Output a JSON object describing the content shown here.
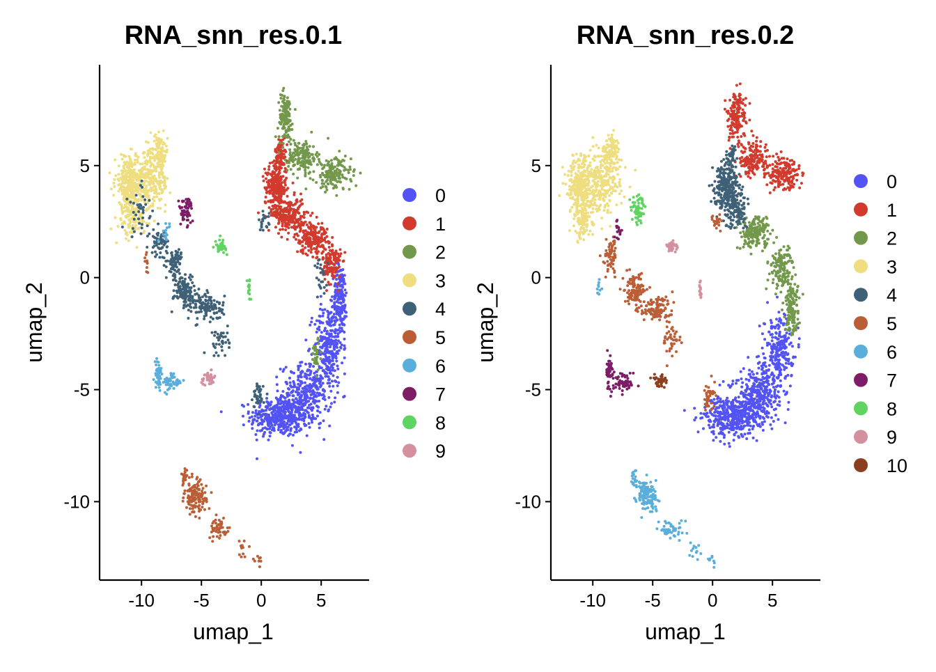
{
  "chart_data": [
    {
      "type": "scatter",
      "title": "RNA_snn_res.0.1",
      "xlabel": "umap_1",
      "ylabel": "umap_2",
      "xlim": [
        -13.5,
        9
      ],
      "ylim": [
        -13.5,
        9.5
      ],
      "xticks": [
        -10,
        -5,
        0,
        5
      ],
      "yticks": [
        5,
        0,
        -5,
        -10
      ],
      "legend_position": "right",
      "clusters": [
        {
          "name": "0",
          "color": "#5353f5",
          "blobs": [
            {
              "x": 1.5,
              "y": -6.2,
              "sx": 1.6,
              "sy": 0.6,
              "n": 420
            },
            {
              "x": 3.8,
              "y": -5.2,
              "sx": 1.4,
              "sy": 0.9,
              "n": 320
            },
            {
              "x": 5.6,
              "y": -3.0,
              "sx": 0.8,
              "sy": 1.2,
              "n": 260
            },
            {
              "x": 6.6,
              "y": -0.9,
              "sx": 0.4,
              "sy": 1.0,
              "n": 170
            }
          ]
        },
        {
          "name": "1",
          "color": "#d13a2d",
          "blobs": [
            {
              "x": 1.2,
              "y": 4.0,
              "sx": 0.6,
              "sy": 0.7,
              "n": 260
            },
            {
              "x": 2.4,
              "y": 2.8,
              "sx": 0.8,
              "sy": 0.5,
              "n": 200
            },
            {
              "x": 4.2,
              "y": 1.8,
              "sx": 0.9,
              "sy": 0.5,
              "n": 200
            },
            {
              "x": 5.9,
              "y": 0.6,
              "sx": 0.5,
              "sy": 0.6,
              "n": 140
            },
            {
              "x": 1.6,
              "y": 5.5,
              "sx": 0.3,
              "sy": 0.5,
              "n": 70
            }
          ]
        },
        {
          "name": "2",
          "color": "#72994b",
          "blobs": [
            {
              "x": 2.0,
              "y": 7.2,
              "sx": 0.4,
              "sy": 0.7,
              "n": 130
            },
            {
              "x": 3.4,
              "y": 5.4,
              "sx": 0.8,
              "sy": 0.5,
              "n": 160
            },
            {
              "x": 6.0,
              "y": 4.6,
              "sx": 1.0,
              "sy": 0.5,
              "n": 170
            },
            {
              "x": 4.6,
              "y": -3.5,
              "sx": 0.3,
              "sy": 0.5,
              "n": 30
            }
          ]
        },
        {
          "name": "3",
          "color": "#eede80",
          "blobs": [
            {
              "x": -11.0,
              "y": 4.2,
              "sx": 0.8,
              "sy": 0.8,
              "n": 280
            },
            {
              "x": -9.2,
              "y": 4.3,
              "sx": 1.0,
              "sy": 0.9,
              "n": 260
            },
            {
              "x": -8.5,
              "y": 5.6,
              "sx": 0.5,
              "sy": 0.5,
              "n": 90
            },
            {
              "x": -10.8,
              "y": 2.6,
              "sx": 0.7,
              "sy": 0.6,
              "n": 110
            }
          ]
        },
        {
          "name": "4",
          "color": "#3f6177",
          "blobs": [
            {
              "x": -8.5,
              "y": 1.6,
              "sx": 0.5,
              "sy": 0.4,
              "n": 60
            },
            {
              "x": -7.2,
              "y": 0.6,
              "sx": 0.4,
              "sy": 0.5,
              "n": 70
            },
            {
              "x": -6.4,
              "y": -0.6,
              "sx": 0.6,
              "sy": 0.5,
              "n": 120
            },
            {
              "x": -4.5,
              "y": -1.3,
              "sx": 0.9,
              "sy": 0.4,
              "n": 120
            },
            {
              "x": -3.4,
              "y": -2.8,
              "sx": 0.5,
              "sy": 0.5,
              "n": 40
            },
            {
              "x": -0.2,
              "y": -5.3,
              "sx": 0.3,
              "sy": 0.4,
              "n": 40
            },
            {
              "x": 0.2,
              "y": 2.5,
              "sx": 0.3,
              "sy": 0.3,
              "n": 20
            },
            {
              "x": 5.0,
              "y": 0.0,
              "sx": 0.4,
              "sy": 0.6,
              "n": 25
            },
            {
              "x": -10.0,
              "y": 3.0,
              "sx": 0.8,
              "sy": 0.8,
              "n": 40
            }
          ]
        },
        {
          "name": "5",
          "color": "#bb5e36",
          "blobs": [
            {
              "x": -5.5,
              "y": -9.8,
              "sx": 0.6,
              "sy": 0.5,
              "n": 130
            },
            {
              "x": -6.5,
              "y": -9.0,
              "sx": 0.2,
              "sy": 0.3,
              "n": 20
            },
            {
              "x": -3.5,
              "y": -11.2,
              "sx": 0.6,
              "sy": 0.3,
              "n": 50
            },
            {
              "x": -1.5,
              "y": -12.1,
              "sx": 0.4,
              "sy": 0.3,
              "n": 12
            },
            {
              "x": -0.2,
              "y": -12.6,
              "sx": 0.2,
              "sy": 0.2,
              "n": 8
            },
            {
              "x": -9.6,
              "y": 0.6,
              "sx": 0.1,
              "sy": 0.4,
              "n": 10
            }
          ]
        },
        {
          "name": "6",
          "color": "#5aaedc",
          "blobs": [
            {
              "x": -8.6,
              "y": -4.3,
              "sx": 0.2,
              "sy": 0.5,
              "n": 50
            },
            {
              "x": -7.4,
              "y": -4.7,
              "sx": 0.5,
              "sy": 0.3,
              "n": 55
            },
            {
              "x": -8.0,
              "y": 2.1,
              "sx": 0.3,
              "sy": 0.3,
              "n": 15
            }
          ]
        },
        {
          "name": "7",
          "color": "#7d1d66",
          "blobs": [
            {
              "x": -6.3,
              "y": 3.0,
              "sx": 0.4,
              "sy": 0.4,
              "n": 60
            }
          ]
        },
        {
          "name": "8",
          "color": "#5fd461",
          "blobs": [
            {
              "x": -3.4,
              "y": 1.4,
              "sx": 0.3,
              "sy": 0.2,
              "n": 40
            },
            {
              "x": -1.0,
              "y": -0.5,
              "sx": 0.1,
              "sy": 0.3,
              "n": 15
            }
          ]
        },
        {
          "name": "9",
          "color": "#d4909e",
          "blobs": [
            {
              "x": -4.4,
              "y": -4.5,
              "sx": 0.4,
              "sy": 0.2,
              "n": 40
            }
          ]
        }
      ]
    },
    {
      "type": "scatter",
      "title": "RNA_snn_res.0.2",
      "xlabel": "umap_1",
      "ylabel": "umap_2",
      "xlim": [
        -13.5,
        9
      ],
      "ylim": [
        -13.5,
        9.5
      ],
      "xticks": [
        -10,
        -5,
        0,
        5
      ],
      "yticks": [
        5,
        0,
        -5,
        -10
      ],
      "legend_position": "right",
      "clusters": [
        {
          "name": "0",
          "color": "#5353f5",
          "blobs": [
            {
              "x": 1.5,
              "y": -6.2,
              "sx": 1.6,
              "sy": 0.6,
              "n": 420
            },
            {
              "x": 3.8,
              "y": -5.2,
              "sx": 1.4,
              "sy": 0.9,
              "n": 320
            },
            {
              "x": 5.6,
              "y": -3.2,
              "sx": 0.8,
              "sy": 1.0,
              "n": 240
            }
          ]
        },
        {
          "name": "1",
          "color": "#d13a2d",
          "blobs": [
            {
              "x": 2.0,
              "y": 7.2,
              "sx": 0.5,
              "sy": 0.8,
              "n": 160
            },
            {
              "x": 3.4,
              "y": 5.3,
              "sx": 0.8,
              "sy": 0.5,
              "n": 160
            },
            {
              "x": 6.0,
              "y": 4.6,
              "sx": 1.0,
              "sy": 0.5,
              "n": 170
            }
          ]
        },
        {
          "name": "2",
          "color": "#72994b",
          "blobs": [
            {
              "x": 3.5,
              "y": 2.0,
              "sx": 0.9,
              "sy": 0.5,
              "n": 180
            },
            {
              "x": 5.8,
              "y": 0.4,
              "sx": 0.6,
              "sy": 0.6,
              "n": 140
            },
            {
              "x": 6.6,
              "y": -1.3,
              "sx": 0.4,
              "sy": 0.8,
              "n": 130
            }
          ]
        },
        {
          "name": "3",
          "color": "#eede80",
          "blobs": [
            {
              "x": -11.0,
              "y": 4.2,
              "sx": 0.8,
              "sy": 0.8,
              "n": 280
            },
            {
              "x": -9.2,
              "y": 4.3,
              "sx": 1.0,
              "sy": 0.9,
              "n": 260
            },
            {
              "x": -8.5,
              "y": 5.6,
              "sx": 0.5,
              "sy": 0.5,
              "n": 90
            },
            {
              "x": -10.8,
              "y": 2.6,
              "sx": 0.7,
              "sy": 0.6,
              "n": 110
            }
          ]
        },
        {
          "name": "4",
          "color": "#3f6177",
          "blobs": [
            {
              "x": 1.2,
              "y": 4.0,
              "sx": 0.7,
              "sy": 0.7,
              "n": 260
            },
            {
              "x": 1.9,
              "y": 3.0,
              "sx": 0.6,
              "sy": 0.5,
              "n": 120
            },
            {
              "x": 1.5,
              "y": 5.3,
              "sx": 0.3,
              "sy": 0.4,
              "n": 40
            }
          ]
        },
        {
          "name": "5",
          "color": "#bb5e36",
          "blobs": [
            {
              "x": -8.5,
              "y": 1.0,
              "sx": 0.4,
              "sy": 0.5,
              "n": 60
            },
            {
              "x": -6.5,
              "y": -0.6,
              "sx": 0.6,
              "sy": 0.5,
              "n": 110
            },
            {
              "x": -4.8,
              "y": -1.4,
              "sx": 0.9,
              "sy": 0.4,
              "n": 110
            },
            {
              "x": -3.4,
              "y": -2.8,
              "sx": 0.5,
              "sy": 0.5,
              "n": 40
            },
            {
              "x": -0.3,
              "y": -5.3,
              "sx": 0.3,
              "sy": 0.4,
              "n": 40
            },
            {
              "x": 0.3,
              "y": 2.5,
              "sx": 0.3,
              "sy": 0.3,
              "n": 20
            }
          ]
        },
        {
          "name": "6",
          "color": "#5aaedc",
          "blobs": [
            {
              "x": -5.5,
              "y": -9.8,
              "sx": 0.6,
              "sy": 0.5,
              "n": 130
            },
            {
              "x": -6.5,
              "y": -9.0,
              "sx": 0.2,
              "sy": 0.3,
              "n": 20
            },
            {
              "x": -3.5,
              "y": -11.2,
              "sx": 0.6,
              "sy": 0.3,
              "n": 50
            },
            {
              "x": -1.5,
              "y": -12.1,
              "sx": 0.4,
              "sy": 0.3,
              "n": 12
            },
            {
              "x": -0.2,
              "y": -12.6,
              "sx": 0.2,
              "sy": 0.2,
              "n": 8
            },
            {
              "x": -9.5,
              "y": -0.5,
              "sx": 0.1,
              "sy": 0.4,
              "n": 10
            }
          ]
        },
        {
          "name": "7",
          "color": "#7d1d66",
          "blobs": [
            {
              "x": -8.6,
              "y": -4.3,
              "sx": 0.2,
              "sy": 0.5,
              "n": 50
            },
            {
              "x": -7.4,
              "y": -4.7,
              "sx": 0.5,
              "sy": 0.3,
              "n": 55
            },
            {
              "x": -7.9,
              "y": 2.1,
              "sx": 0.2,
              "sy": 0.3,
              "n": 15
            }
          ]
        },
        {
          "name": "8",
          "color": "#5fd461",
          "blobs": [
            {
              "x": -6.2,
              "y": 3.0,
              "sx": 0.4,
              "sy": 0.4,
              "n": 60
            }
          ]
        },
        {
          "name": "9",
          "color": "#d4909e",
          "blobs": [
            {
              "x": -3.4,
              "y": 1.4,
              "sx": 0.3,
              "sy": 0.2,
              "n": 40
            },
            {
              "x": -1.0,
              "y": -0.5,
              "sx": 0.1,
              "sy": 0.3,
              "n": 15
            }
          ]
        },
        {
          "name": "10",
          "color": "#8b3f1f",
          "blobs": [
            {
              "x": -4.4,
              "y": -4.6,
              "sx": 0.4,
              "sy": 0.2,
              "n": 40
            }
          ]
        }
      ]
    }
  ]
}
